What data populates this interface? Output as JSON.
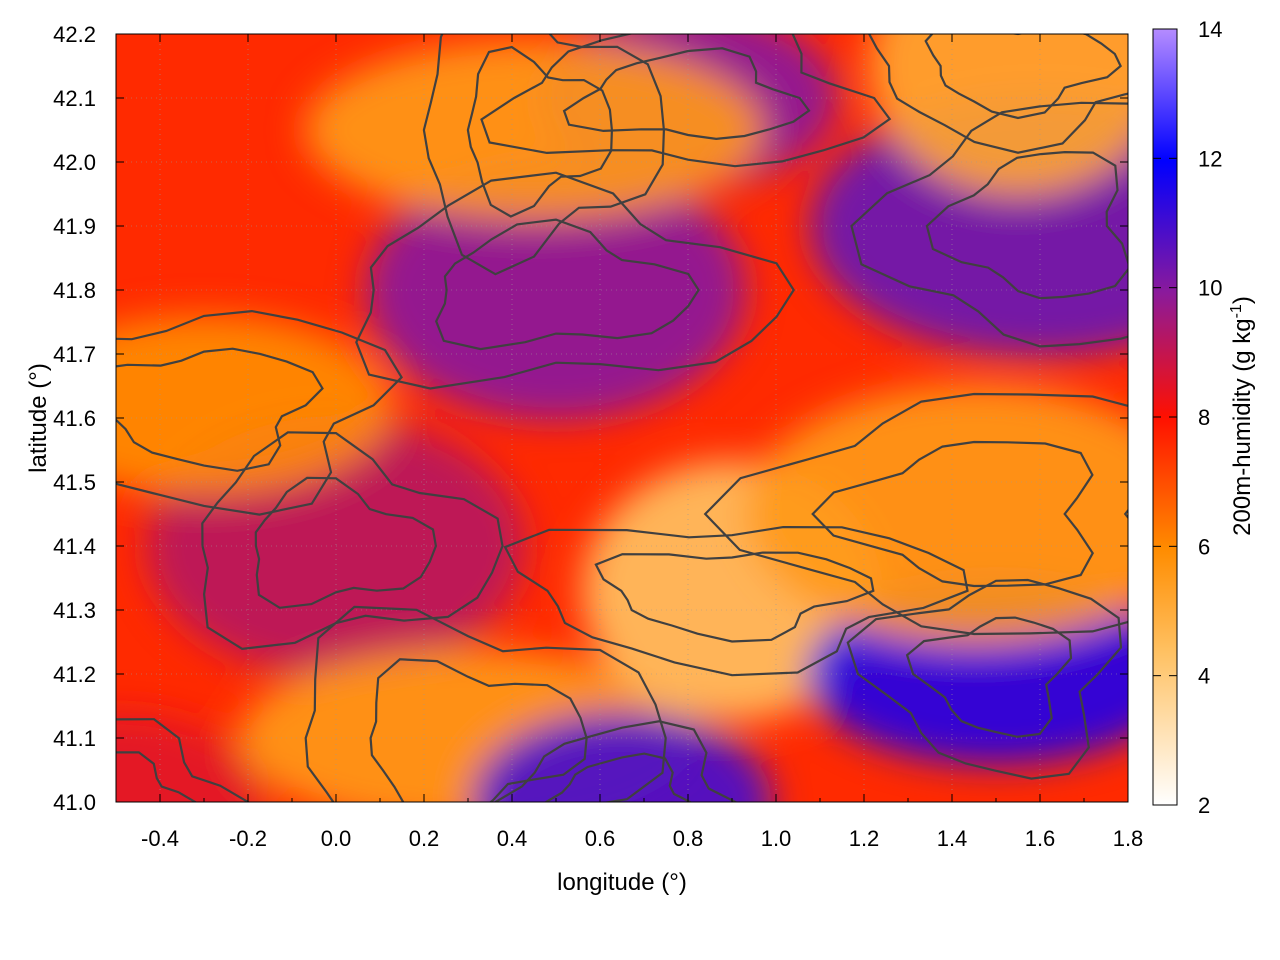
{
  "chart_data": {
    "type": "heatmap",
    "title": "",
    "xlabel": "longitude (°)",
    "ylabel": "latitude (°)",
    "xlim": [
      -0.5,
      1.8
    ],
    "ylim": [
      41.0,
      42.2
    ],
    "x_ticks": [
      "-0.4",
      "-0.2",
      "0.0",
      "0.2",
      "0.4",
      "0.6",
      "0.8",
      "1.0",
      "1.2",
      "1.4",
      "1.6",
      "1.8"
    ],
    "x_tick_values": [
      -0.4,
      -0.2,
      0.0,
      0.2,
      0.4,
      0.6,
      0.8,
      1.0,
      1.2,
      1.4,
      1.6,
      1.8
    ],
    "y_ticks": [
      "41.0",
      "41.1",
      "41.2",
      "41.3",
      "41.4",
      "41.5",
      "41.6",
      "41.7",
      "41.8",
      "41.9",
      "42.0",
      "42.1",
      "42.2"
    ],
    "y_tick_values": [
      41.0,
      41.1,
      41.2,
      41.3,
      41.4,
      41.5,
      41.6,
      41.7,
      41.8,
      41.9,
      42.0,
      42.1,
      42.2
    ],
    "colorbar": {
      "label": "200m-humidity (g kg",
      "label_sup": "-1",
      "label_end": ")",
      "range": [
        2,
        14
      ],
      "ticks": [
        "2",
        "4",
        "6",
        "8",
        "10",
        "12",
        "14"
      ],
      "tick_values": [
        2,
        4,
        6,
        8,
        10,
        12,
        14
      ],
      "colors": [
        "#ffffff",
        "#ffa500",
        "#ff0000",
        "#8b1a8b",
        "#0000ff",
        "#b58cff"
      ]
    },
    "grid": true,
    "contours": true,
    "contour_color": "#404040",
    "regions": [
      {
        "lon": -0.5,
        "lat": 41.0,
        "value": 8.5
      },
      {
        "lon": 0.0,
        "lat": 41.4,
        "value": 9.2
      },
      {
        "lon": 0.3,
        "lat": 41.1,
        "value": 5.5
      },
      {
        "lon": 0.9,
        "lat": 41.33,
        "value": 4.0
      },
      {
        "lon": 1.5,
        "lat": 41.2,
        "value": 11.5
      },
      {
        "lon": 1.6,
        "lat": 41.9,
        "value": 10.5
      },
      {
        "lon": 0.8,
        "lat": 42.1,
        "value": 10.0
      },
      {
        "lon": 0.5,
        "lat": 41.8,
        "value": 10.0
      },
      {
        "lon": 0.45,
        "lat": 42.05,
        "value": 5.5
      },
      {
        "lon": 1.55,
        "lat": 42.15,
        "value": 5.0
      },
      {
        "lon": -0.3,
        "lat": 41.62,
        "value": 6.0
      },
      {
        "lon": 1.45,
        "lat": 41.45,
        "value": 5.5
      },
      {
        "lon": 0.65,
        "lat": 41.0,
        "value": 11.0
      }
    ]
  }
}
